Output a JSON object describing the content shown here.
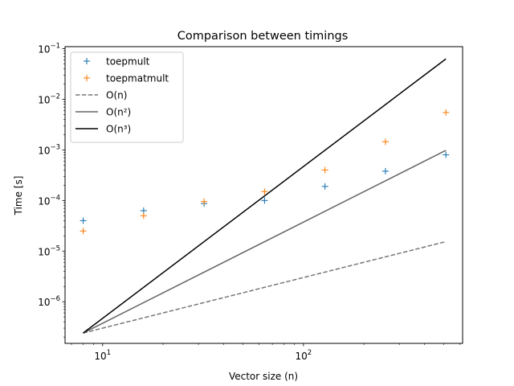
{
  "chart_data": {
    "type": "scatter",
    "title": "Comparison between timings",
    "xlabel": "Vector size (n)",
    "ylabel": "Time [s]",
    "xscale": "log",
    "yscale": "log",
    "xlim": [
      6.5,
      620
    ],
    "ylim": [
      1.5e-07,
      0.11
    ],
    "grid": false,
    "legend_position": "top-left",
    "x_ticks": [
      {
        "value": 10,
        "base": "10",
        "exp": "1"
      },
      {
        "value": 100,
        "base": "10",
        "exp": "2"
      }
    ],
    "y_ticks": [
      {
        "value": 1e-06,
        "base": "10",
        "exp": "−6"
      },
      {
        "value": 1e-05,
        "base": "10",
        "exp": "−5"
      },
      {
        "value": 0.0001,
        "base": "10",
        "exp": "−4"
      },
      {
        "value": 0.001,
        "base": "10",
        "exp": "−3"
      },
      {
        "value": 0.01,
        "base": "10",
        "exp": "−2"
      },
      {
        "value": 0.1,
        "base": "10",
        "exp": "−1"
      }
    ],
    "series": [
      {
        "name": "toepmult",
        "kind": "marker",
        "marker": "+",
        "color": "#1f77b4",
        "x": [
          8,
          16,
          32,
          64,
          128,
          256,
          512
        ],
        "y": [
          4e-05,
          6.3e-05,
          8.7e-05,
          0.0001,
          0.00019,
          0.00038,
          0.0008
        ]
      },
      {
        "name": "toepmatmult",
        "kind": "marker",
        "marker": "+",
        "color": "#ff7f0e",
        "x": [
          8,
          16,
          32,
          64,
          128,
          256,
          512
        ],
        "y": [
          2.5e-05,
          5e-05,
          9.5e-05,
          0.00015,
          0.0004,
          0.00145,
          0.0055
        ]
      },
      {
        "name": "O(n)",
        "kind": "line",
        "dash": "dashed",
        "color": "#777777",
        "x": [
          8,
          512
        ],
        "y": [
          2.4e-07,
          1.54e-05
        ]
      },
      {
        "name": "O(n²)",
        "kind": "line",
        "dash": "solid",
        "color": "#666666",
        "x": [
          8,
          512
        ],
        "y": [
          2.4e-07,
          0.00098
        ]
      },
      {
        "name": "O(n³)",
        "kind": "line",
        "dash": "solid",
        "color": "#000000",
        "x": [
          8,
          512
        ],
        "y": [
          2.4e-07,
          0.063
        ]
      }
    ]
  }
}
